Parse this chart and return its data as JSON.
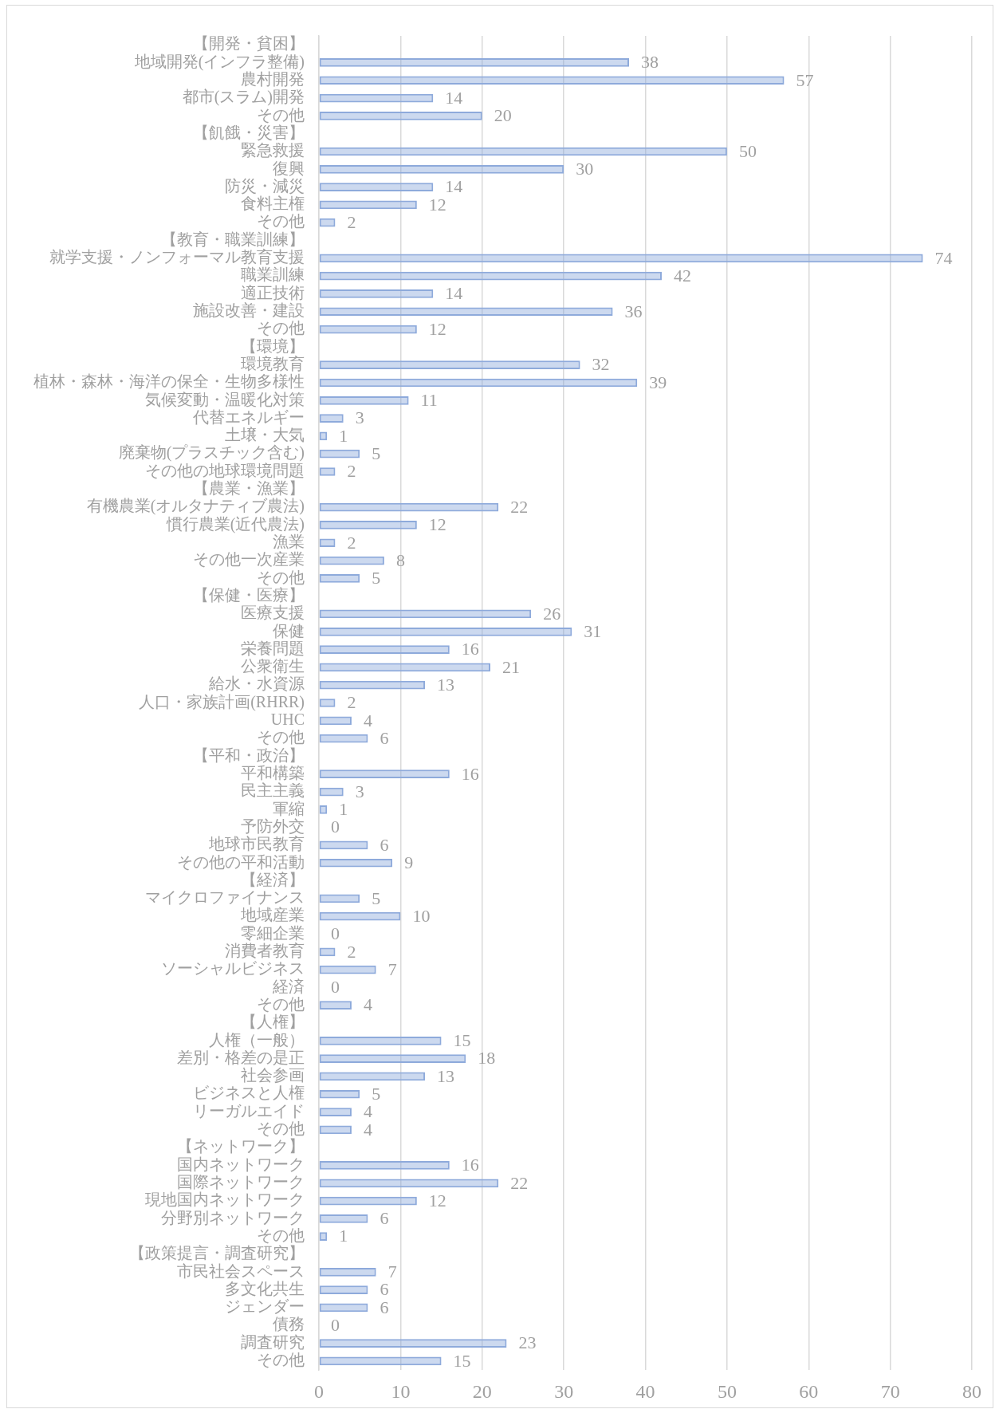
{
  "chart_data": {
    "type": "bar",
    "orientation": "horizontal",
    "categories": [
      "【開発・貧困】",
      "地域開発(インフラ整備)",
      "農村開発",
      "都市(スラム)開発",
      "その他",
      "【飢餓・災害】",
      "緊急救援",
      "復興",
      "防災・減災",
      "食料主権",
      "その他",
      "【教育・職業訓練】",
      "就学支援・ノンフォーマル教育支援",
      "職業訓練",
      "適正技術",
      "施設改善・建設",
      "その他",
      "【環境】",
      "環境教育",
      "植林・森林・海洋の保全・生物多様性",
      "気候変動・温暖化対策",
      "代替エネルギー",
      "土壌・大気",
      "廃棄物(プラスチック含む)",
      "その他の地球環境問題",
      "【農業・漁業】",
      "有機農業(オルタナティブ農法)",
      "慣行農業(近代農法)",
      "漁業",
      "その他一次産業",
      "その他",
      "【保健・医療】",
      "医療支援",
      "保健",
      "栄養問題",
      "公衆衛生",
      "給水・水資源",
      "人口・家族計画(RHRR)",
      "UHC",
      "その他",
      "【平和・政治】",
      "平和構築",
      "民主主義",
      "軍縮",
      "予防外交",
      "地球市民教育",
      "その他の平和活動",
      "【経済】",
      "マイクロファイナンス",
      "地域産業",
      "零細企業",
      "消費者教育",
      "ソーシャルビジネス",
      "経済",
      "その他",
      "【人権】",
      "人権（一般）",
      "差別・格差の是正",
      "社会参画",
      "ビジネスと人権",
      "リーガルエイド",
      "その他",
      "【ネットワーク】",
      "国内ネットワーク",
      "国際ネットワーク",
      "現地国内ネットワーク",
      "分野別ネットワーク",
      "その他",
      "【政策提言・調査研究】",
      "市民社会スペース",
      "多文化共生",
      "ジェンダー",
      "債務",
      "調査研究",
      "その他"
    ],
    "values": [
      null,
      38,
      57,
      14,
      20,
      null,
      50,
      30,
      14,
      12,
      2,
      null,
      74,
      42,
      14,
      36,
      12,
      null,
      32,
      39,
      11,
      3,
      1,
      5,
      2,
      null,
      22,
      12,
      2,
      8,
      5,
      null,
      26,
      31,
      16,
      21,
      13,
      2,
      4,
      6,
      null,
      16,
      3,
      1,
      0,
      6,
      9,
      null,
      5,
      10,
      0,
      2,
      7,
      0,
      4,
      null,
      15,
      18,
      13,
      5,
      4,
      4,
      null,
      16,
      22,
      12,
      6,
      1,
      null,
      7,
      6,
      6,
      0,
      23,
      15
    ],
    "color": "#8eaadb",
    "xlim": [
      0,
      80
    ],
    "xticks": [
      0,
      10,
      20,
      30,
      40,
      50,
      60,
      70,
      80
    ],
    "grid": "x",
    "data_labels": true
  }
}
